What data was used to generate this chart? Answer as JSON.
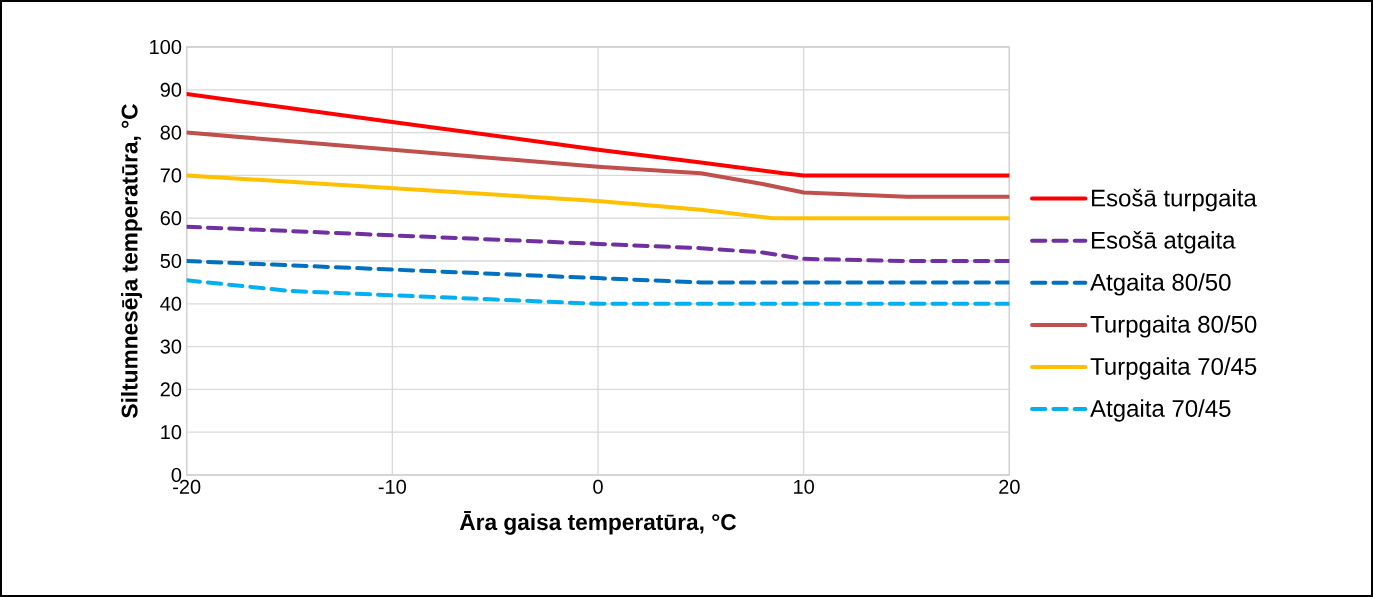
{
  "chart_data": {
    "type": "line",
    "xlabel": "Āra gaisa temperatūra, °C",
    "ylabel": "Siltumnesēja temperatūra, °C",
    "xlim": [
      -20,
      20
    ],
    "ylim": [
      0,
      100
    ],
    "xticks": [
      -20,
      -10,
      0,
      10,
      20
    ],
    "yticks": [
      0,
      10,
      20,
      30,
      40,
      50,
      60,
      70,
      80,
      90,
      100
    ],
    "grid": true,
    "legend": "right",
    "series": [
      {
        "name": "Esošā turpgaita",
        "color": "#ff0000",
        "line_style": "solid",
        "x": [
          -20,
          -10,
          0,
          5,
          9,
          10,
          15,
          20
        ],
        "values": [
          89,
          82.5,
          76,
          73,
          70.5,
          70,
          70,
          70
        ]
      },
      {
        "name": "Esošā atgaita",
        "color": "#7030a0",
        "line_style": "dashed",
        "x": [
          -20,
          -10,
          0,
          5,
          8,
          10,
          15,
          20
        ],
        "values": [
          58,
          56,
          54,
          53,
          52,
          50.5,
          50,
          50
        ]
      },
      {
        "name": "Atgaita 80/50",
        "color": "#0070c0",
        "line_style": "dashed",
        "x": [
          -20,
          -10,
          0,
          5,
          10,
          15,
          20
        ],
        "values": [
          50,
          48,
          46,
          45,
          45,
          45,
          45
        ]
      },
      {
        "name": "Turpgaita 80/50",
        "color": "#c0504d",
        "line_style": "solid",
        "x": [
          -20,
          -10,
          0,
          5,
          8,
          10,
          15,
          20
        ],
        "values": [
          80,
          76,
          72,
          70.5,
          68,
          66,
          65,
          65
        ]
      },
      {
        "name": "Turpgaita 70/45",
        "color": "#ffc000",
        "line_style": "solid",
        "x": [
          -20,
          -10,
          0,
          5,
          8.5,
          10,
          15,
          20
        ],
        "values": [
          70,
          67,
          64,
          62,
          60,
          60,
          60,
          60
        ]
      },
      {
        "name": "Atgaita 70/45",
        "color": "#00b0f0",
        "line_style": "dashed",
        "x": [
          -20,
          -15,
          -10,
          -5,
          0,
          10,
          20
        ],
        "values": [
          45.5,
          43,
          42,
          41,
          40,
          40,
          40
        ]
      }
    ]
  }
}
